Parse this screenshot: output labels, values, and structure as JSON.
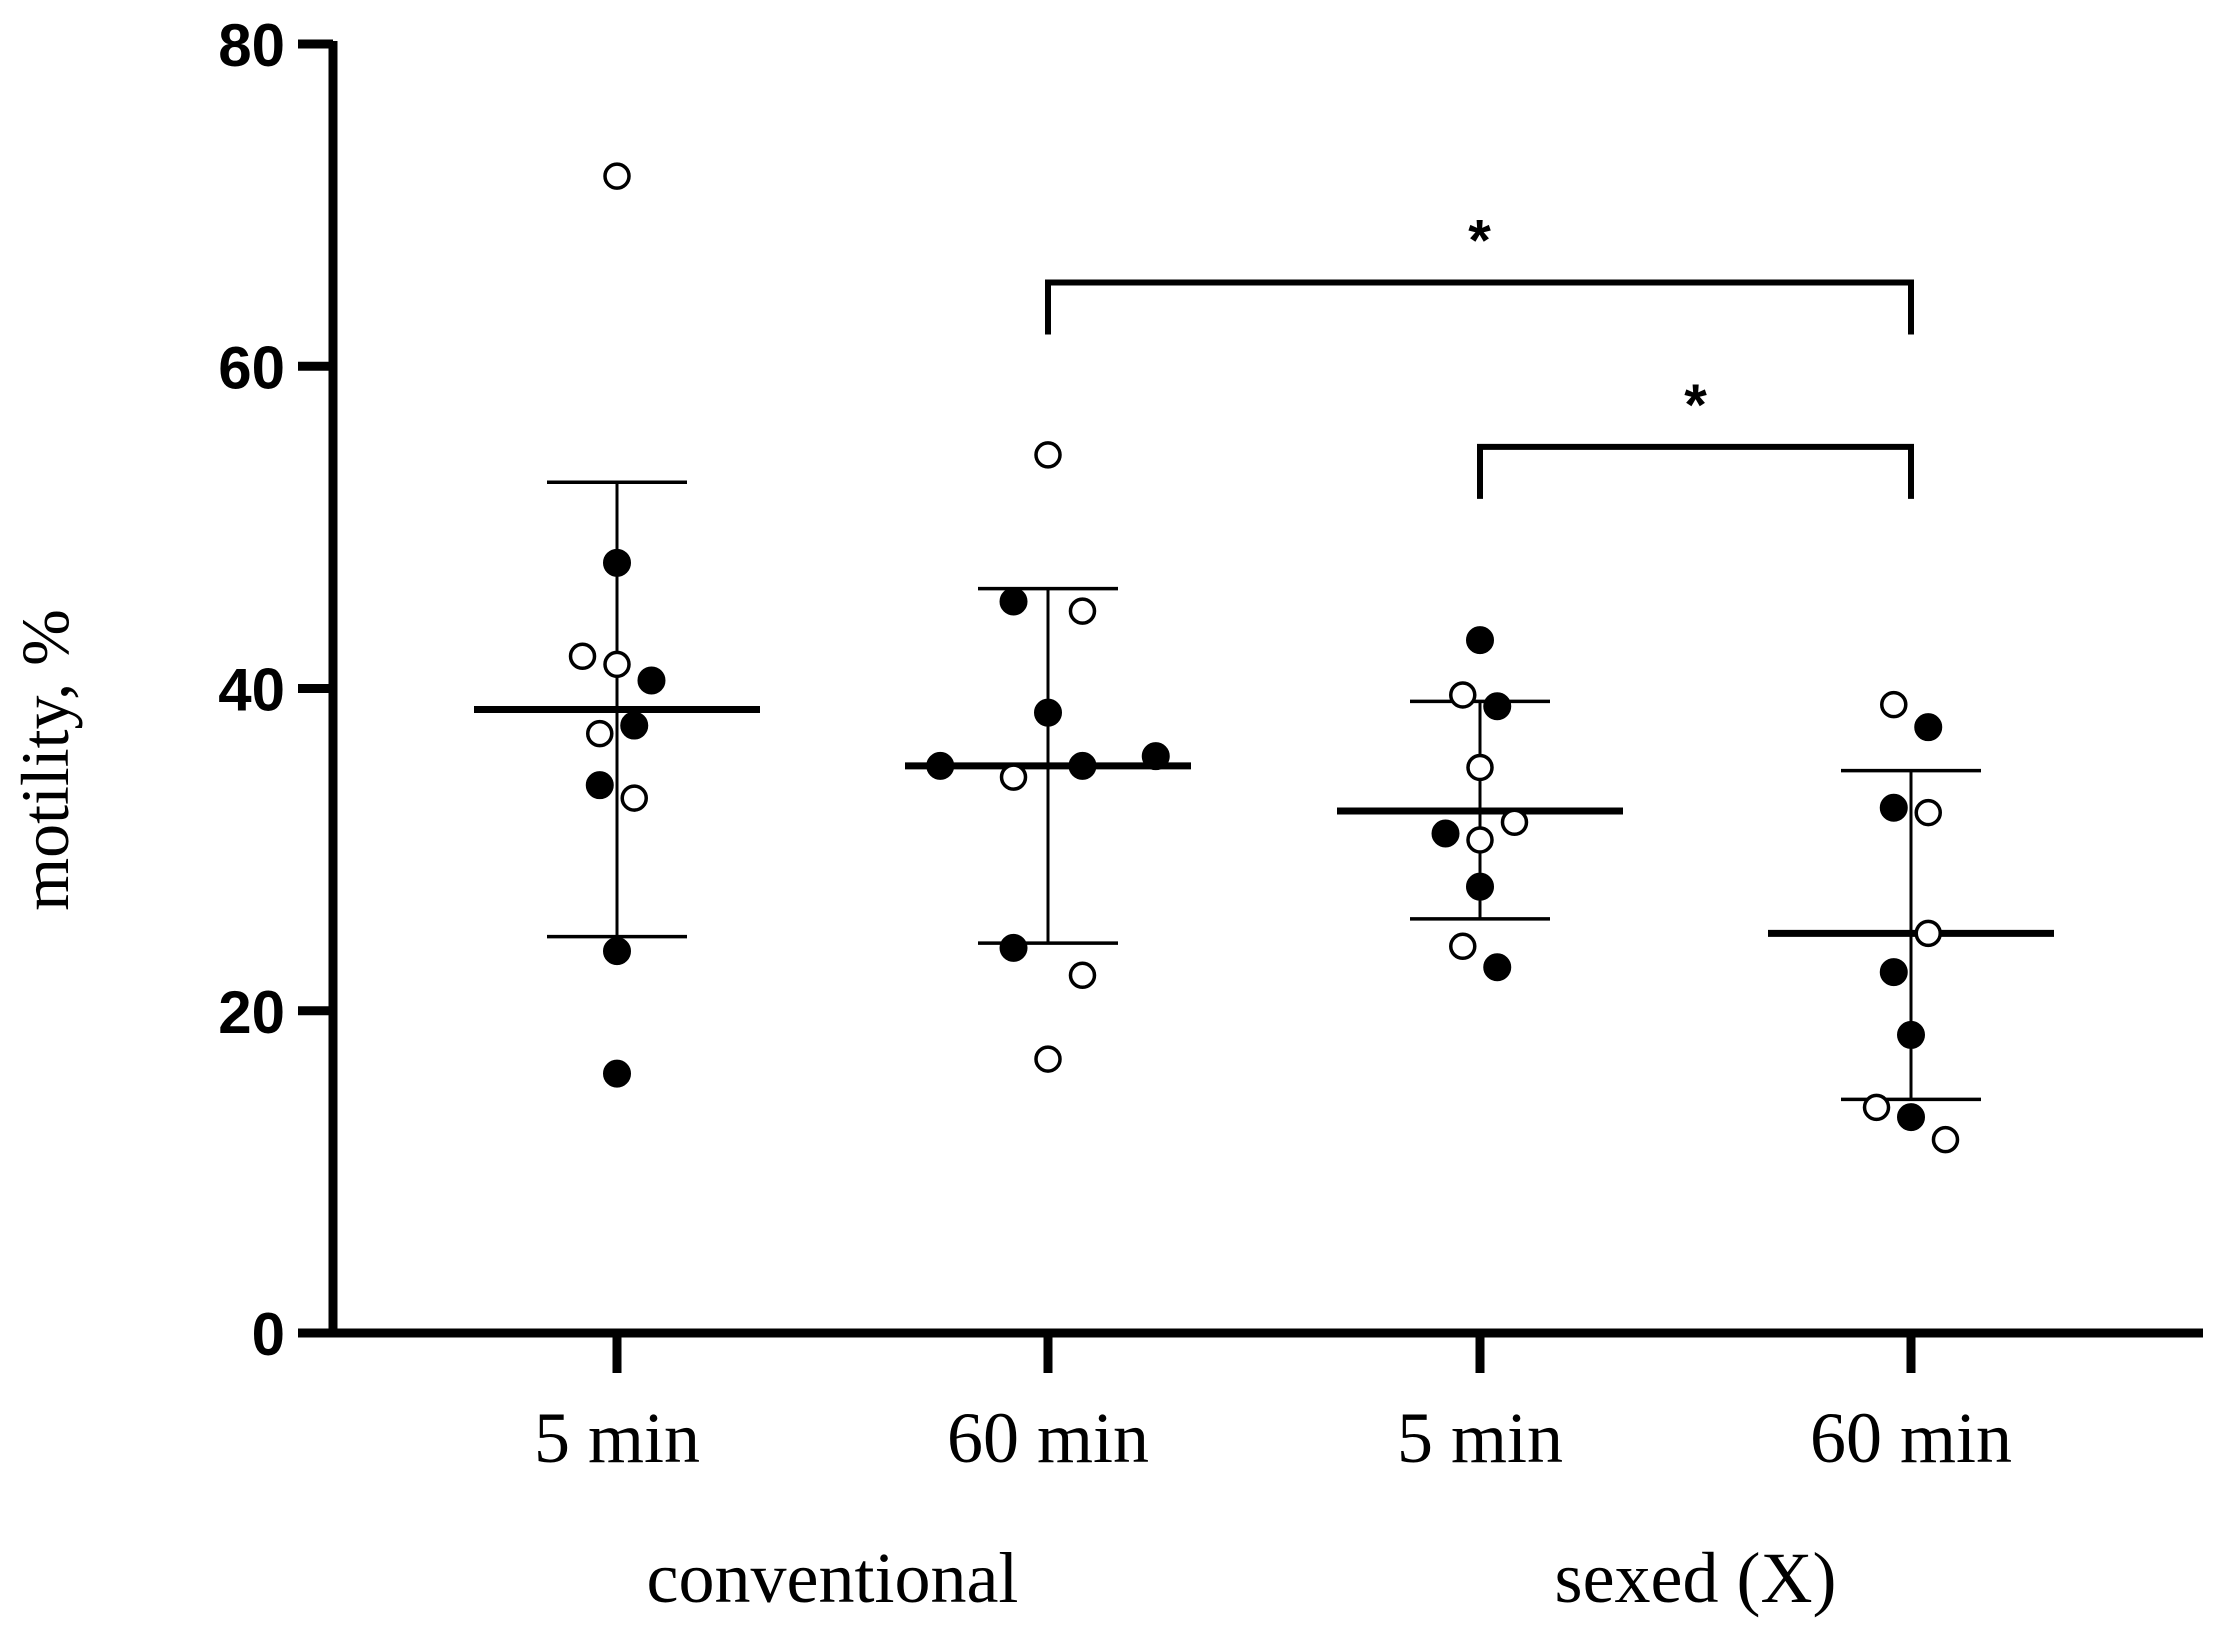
{
  "chart_data": {
    "type": "scatter",
    "title": "",
    "ylabel": "motility, %",
    "xlabel": "",
    "ylim": [
      0,
      80
    ],
    "yticks": [
      0,
      20,
      40,
      60,
      80
    ],
    "categories": [
      "5 min",
      "60 min",
      "5 min",
      "60 min"
    ],
    "groups": [
      {
        "label": "conventional",
        "categories": [
          0,
          1
        ]
      },
      {
        "label": "sexed (X)",
        "categories": [
          2,
          3
        ]
      }
    ],
    "series": [
      {
        "name": "filled",
        "marker": "filled-circle",
        "points": [
          {
            "cat": 0,
            "offset": 0.0,
            "y": 47.8
          },
          {
            "cat": 0,
            "offset": 0.08,
            "y": 40.5
          },
          {
            "cat": 0,
            "offset": 0.04,
            "y": 37.7
          },
          {
            "cat": 0,
            "offset": -0.04,
            "y": 34.0
          },
          {
            "cat": 0,
            "offset": 0.0,
            "y": 23.7
          },
          {
            "cat": 0,
            "offset": 0.0,
            "y": 16.1
          },
          {
            "cat": 1,
            "offset": -0.08,
            "y": 45.4
          },
          {
            "cat": 1,
            "offset": 0.0,
            "y": 38.5
          },
          {
            "cat": 1,
            "offset": -0.25,
            "y": 35.2
          },
          {
            "cat": 1,
            "offset": 0.08,
            "y": 35.2
          },
          {
            "cat": 1,
            "offset": 0.25,
            "y": 35.8
          },
          {
            "cat": 1,
            "offset": -0.08,
            "y": 23.9
          },
          {
            "cat": 2,
            "offset": 0.0,
            "y": 43.0
          },
          {
            "cat": 2,
            "offset": 0.04,
            "y": 38.9
          },
          {
            "cat": 2,
            "offset": -0.08,
            "y": 31.0
          },
          {
            "cat": 2,
            "offset": 0.0,
            "y": 27.7
          },
          {
            "cat": 2,
            "offset": 0.04,
            "y": 22.7
          },
          {
            "cat": 3,
            "offset": 0.04,
            "y": 37.6
          },
          {
            "cat": 3,
            "offset": -0.04,
            "y": 32.6
          },
          {
            "cat": 3,
            "offset": -0.04,
            "y": 22.4
          },
          {
            "cat": 3,
            "offset": 0.0,
            "y": 18.5
          },
          {
            "cat": 3,
            "offset": 0.0,
            "y": 13.4
          }
        ]
      },
      {
        "name": "open",
        "marker": "open-circle",
        "points": [
          {
            "cat": 0,
            "offset": 0.0,
            "y": 71.8
          },
          {
            "cat": 0,
            "offset": -0.08,
            "y": 42.0
          },
          {
            "cat": 0,
            "offset": 0.0,
            "y": 41.5
          },
          {
            "cat": 0,
            "offset": -0.04,
            "y": 37.2
          },
          {
            "cat": 0,
            "offset": 0.04,
            "y": 33.2
          },
          {
            "cat": 1,
            "offset": 0.0,
            "y": 54.5
          },
          {
            "cat": 1,
            "offset": 0.08,
            "y": 44.8
          },
          {
            "cat": 1,
            "offset": -0.08,
            "y": 34.5
          },
          {
            "cat": 1,
            "offset": 0.08,
            "y": 22.2
          },
          {
            "cat": 1,
            "offset": 0.0,
            "y": 17.0
          },
          {
            "cat": 2,
            "offset": -0.04,
            "y": 39.6
          },
          {
            "cat": 2,
            "offset": 0.0,
            "y": 35.1
          },
          {
            "cat": 2,
            "offset": 0.08,
            "y": 31.7
          },
          {
            "cat": 2,
            "offset": 0.0,
            "y": 30.6
          },
          {
            "cat": 2,
            "offset": -0.04,
            "y": 24.0
          },
          {
            "cat": 3,
            "offset": -0.04,
            "y": 39.0
          },
          {
            "cat": 3,
            "offset": 0.04,
            "y": 32.3
          },
          {
            "cat": 3,
            "offset": 0.04,
            "y": 24.8
          },
          {
            "cat": 3,
            "offset": -0.08,
            "y": 14.0
          },
          {
            "cat": 3,
            "offset": 0.08,
            "y": 12.0
          }
        ]
      }
    ],
    "summary": [
      {
        "cat": 0,
        "mean": 38.7,
        "sd_upper": 52.8,
        "sd_lower": 24.6
      },
      {
        "cat": 1,
        "mean": 35.2,
        "sd_upper": 46.2,
        "sd_lower": 24.2
      },
      {
        "cat": 2,
        "mean": 32.4,
        "sd_upper": 39.2,
        "sd_lower": 25.7
      },
      {
        "cat": 3,
        "mean": 24.8,
        "sd_upper": 34.9,
        "sd_lower": 14.5
      }
    ],
    "significance": [
      {
        "from_cat": 1,
        "to_cat": 3,
        "y": 65.2,
        "label": "*"
      },
      {
        "from_cat": 2,
        "to_cat": 3,
        "y": 55.0,
        "label": "*"
      }
    ]
  }
}
